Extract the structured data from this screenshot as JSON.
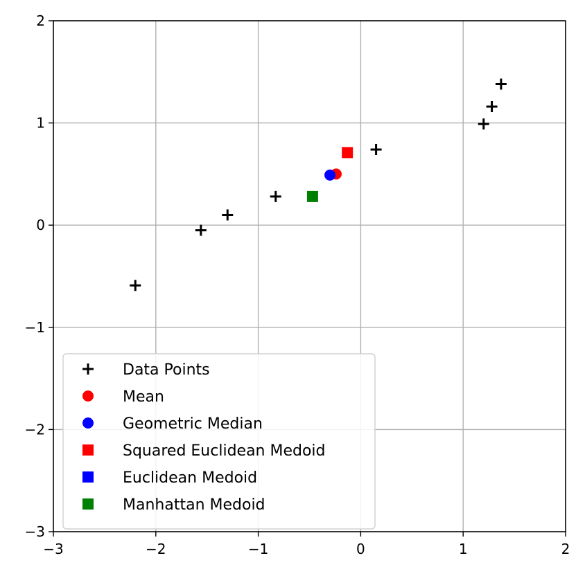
{
  "chart_data": {
    "type": "scatter",
    "xlim": [
      -3,
      2
    ],
    "ylim": [
      -3,
      2
    ],
    "xticks": [
      -3,
      -2,
      -1,
      0,
      1,
      2
    ],
    "yticks": [
      -3,
      -2,
      -1,
      0,
      1,
      2
    ],
    "xtick_labels": [
      "−3",
      "−2",
      "−1",
      "0",
      "1",
      "2"
    ],
    "ytick_labels": [
      "−3",
      "−2",
      "−1",
      "0",
      "1",
      "2"
    ],
    "grid": true,
    "legend_position": "lower-left",
    "series": [
      {
        "name": "Data Points",
        "marker": "plus",
        "color": "#000000",
        "points": [
          [
            -2.2,
            -0.59
          ],
          [
            -1.56,
            -0.05
          ],
          [
            -1.3,
            0.1
          ],
          [
            -0.83,
            0.28
          ],
          [
            0.15,
            0.74
          ],
          [
            1.2,
            0.99
          ],
          [
            1.28,
            1.16
          ],
          [
            1.37,
            1.38
          ]
        ]
      },
      {
        "name": "Mean",
        "marker": "circle",
        "color": "#ff0000",
        "points": [
          [
            -0.24,
            0.5
          ]
        ]
      },
      {
        "name": "Geometric Median",
        "marker": "circle",
        "color": "#0000ff",
        "points": [
          [
            -0.3,
            0.49
          ]
        ]
      },
      {
        "name": "Squared Euclidean Medoid",
        "marker": "square",
        "color": "#ff0000",
        "points": [
          [
            -0.13,
            0.71
          ]
        ]
      },
      {
        "name": "Euclidean Medoid",
        "marker": "square",
        "color": "#0000ff",
        "points": []
      },
      {
        "name": "Manhattan Medoid",
        "marker": "square",
        "color": "#008000",
        "points": [
          [
            -0.47,
            0.28
          ]
        ]
      }
    ]
  }
}
